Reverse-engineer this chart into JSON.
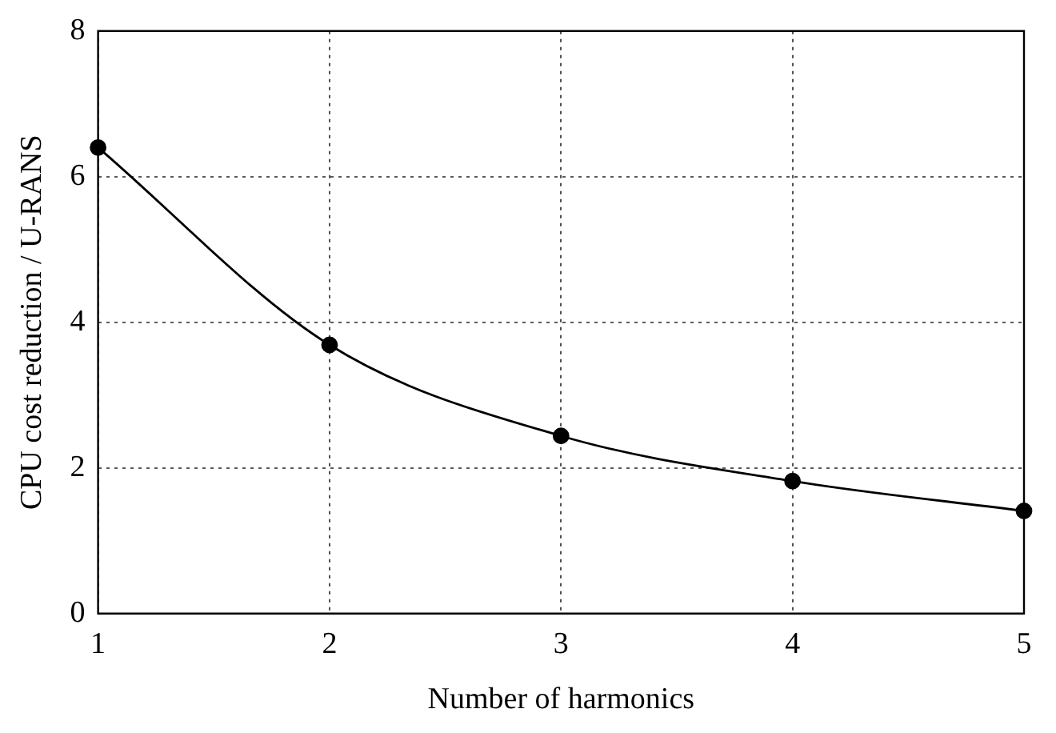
{
  "chart_data": {
    "type": "line",
    "xlabel": "Number of harmonics",
    "ylabel": "CPU cost reduction / U-RANS",
    "x": [
      1,
      2,
      3,
      4,
      5
    ],
    "series": [
      {
        "color": "#000000",
        "values": [
          6.4,
          3.69,
          2.44,
          1.82,
          1.41
        ]
      }
    ],
    "xlim": [
      1,
      5
    ],
    "xticks": [
      1,
      2,
      3,
      4,
      5
    ],
    "ylim": [
      0,
      8
    ],
    "yticks": [
      0,
      2,
      4,
      6,
      8
    ],
    "grid": true,
    "legend": false,
    "marker": "circle",
    "line_style": "solid"
  }
}
